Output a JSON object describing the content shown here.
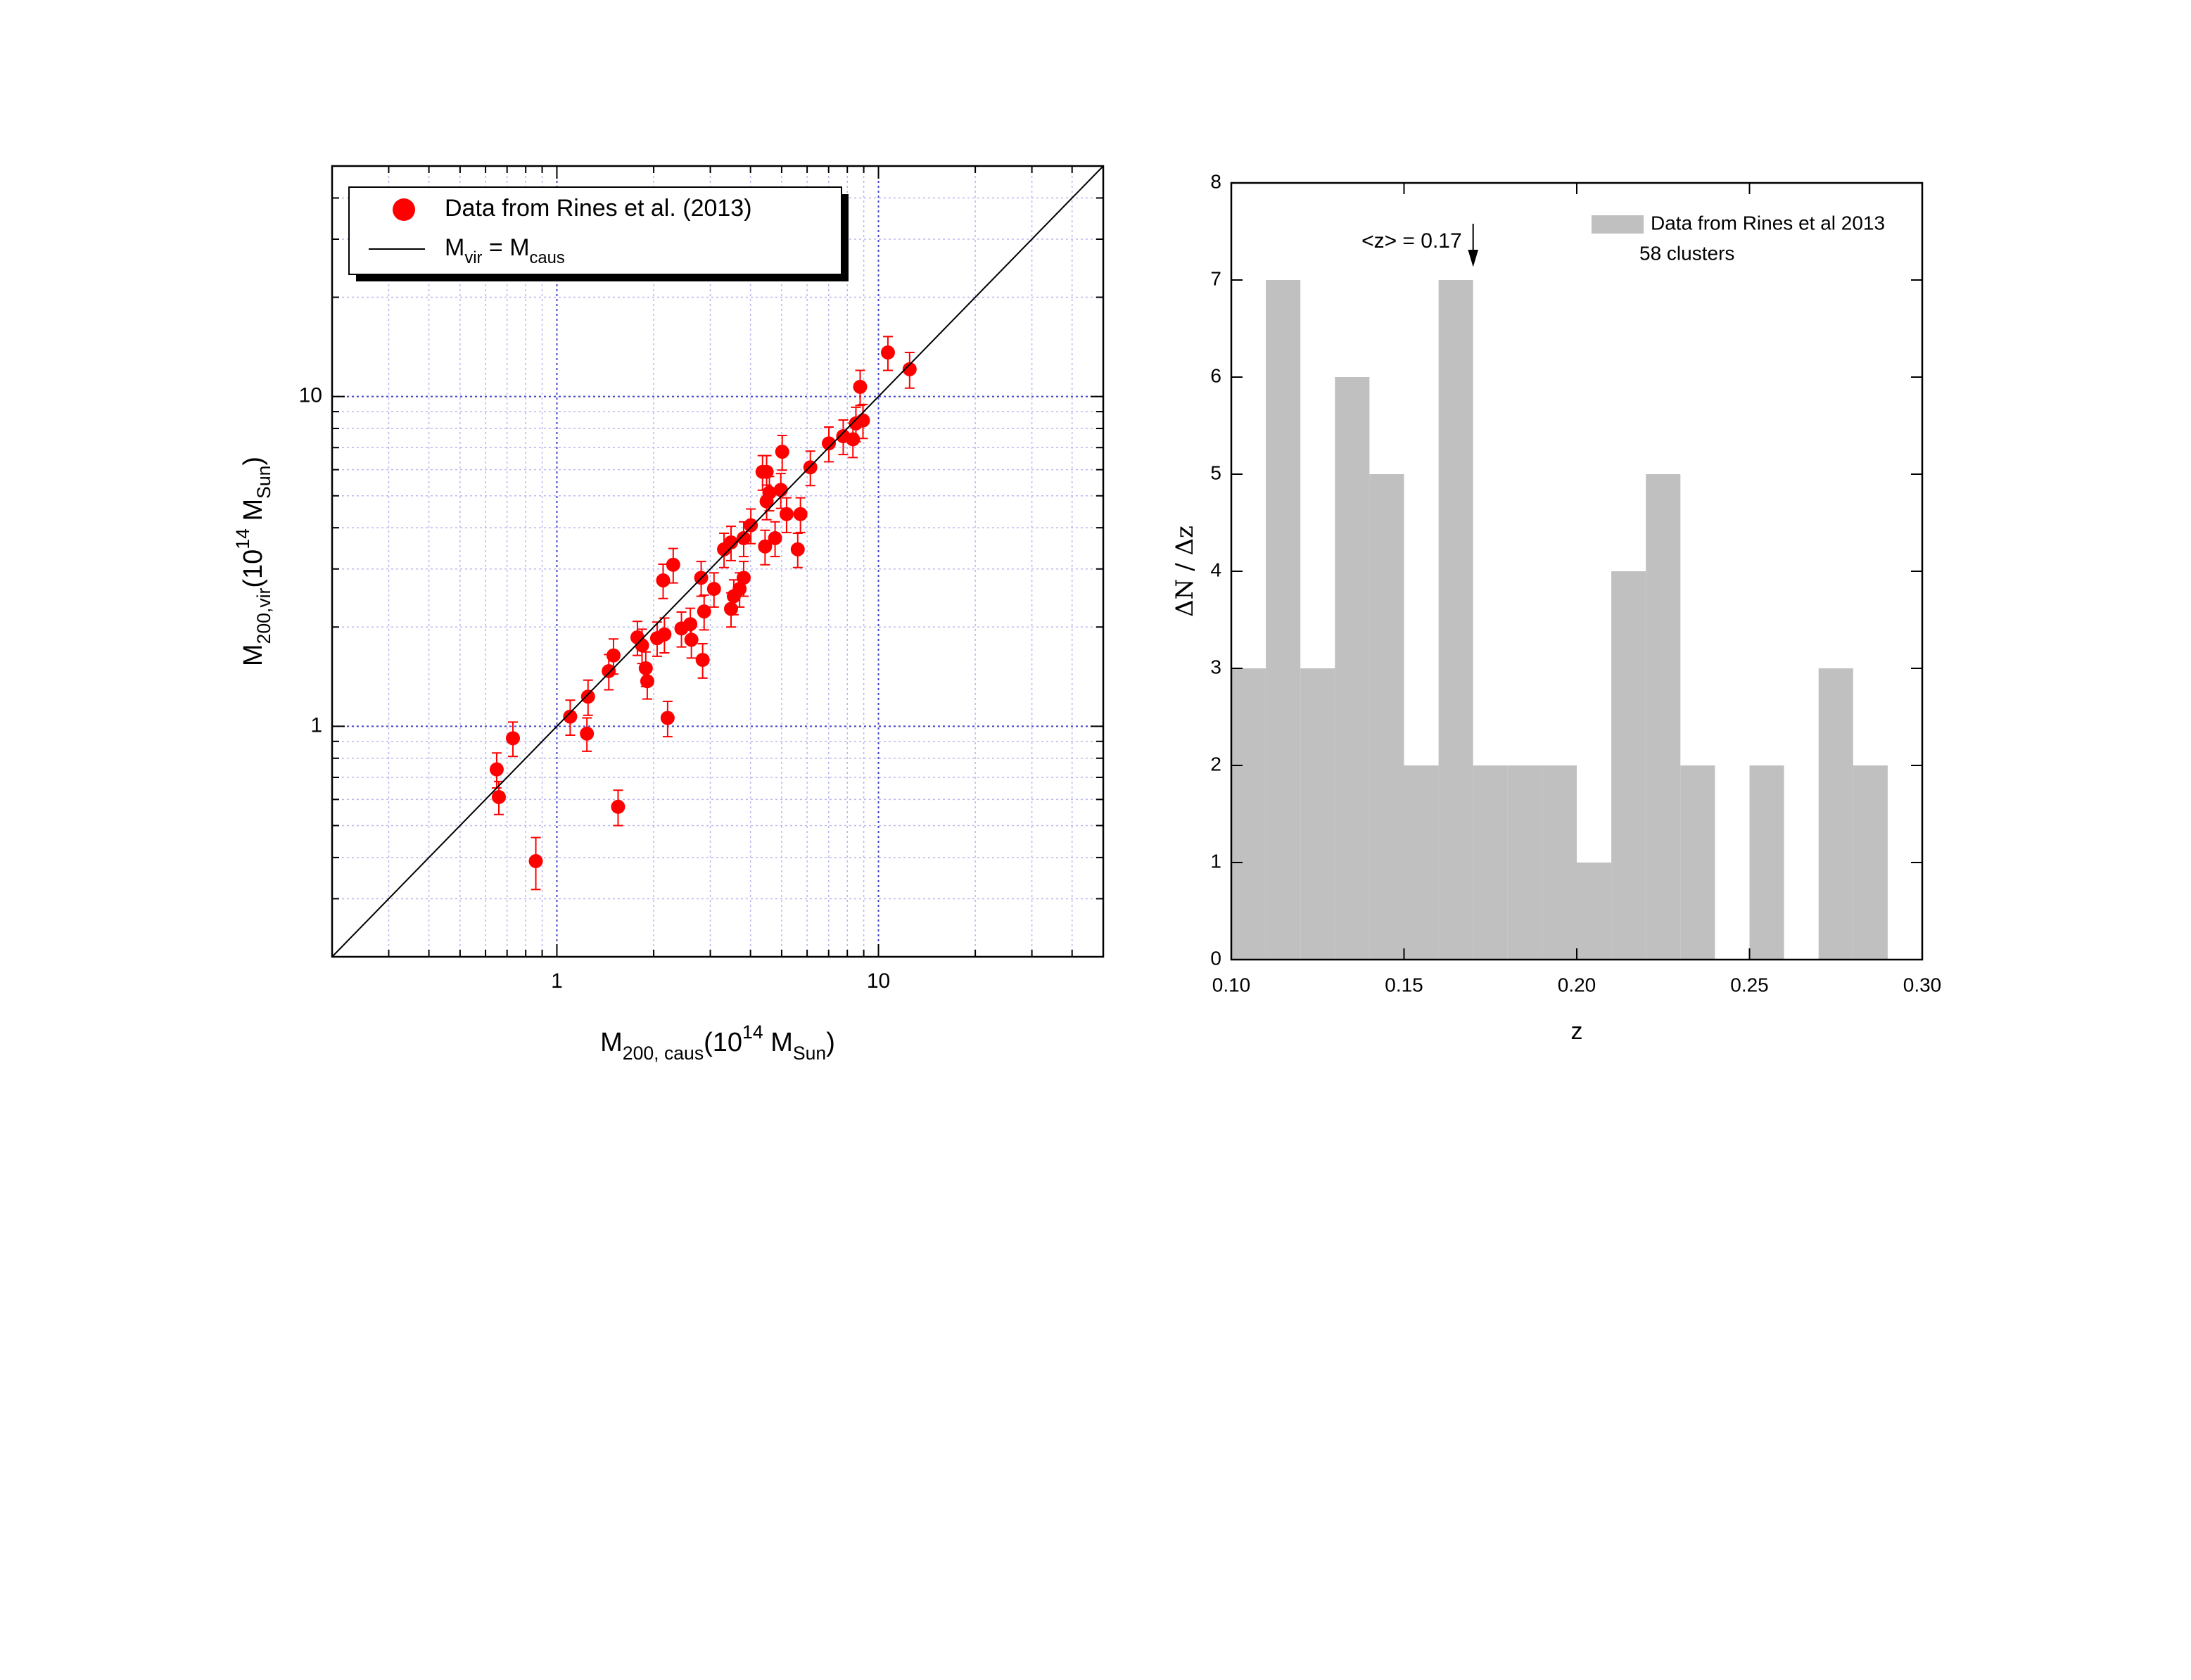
{
  "chart_data": [
    {
      "type": "scatter",
      "log_x": true,
      "log_y": true,
      "grid": true,
      "legend": "upper left",
      "xlabel": [
        {
          "text": "M"
        },
        {
          "sub": "200, caus"
        },
        {
          "text": "(10"
        },
        {
          "sup": "14"
        },
        {
          "text": " M"
        },
        {
          "sub": "Sun"
        },
        {
          "text": ")"
        }
      ],
      "ylabel": [
        {
          "text": "M"
        },
        {
          "sub": "200,vir"
        },
        {
          "text": "(10"
        },
        {
          "sup": "14"
        },
        {
          "text": " M"
        },
        {
          "sub": "Sun"
        },
        {
          "text": ")"
        }
      ],
      "xlim": [
        0.2,
        50
      ],
      "ylim": [
        0.2,
        50
      ],
      "xticks": [
        1,
        10
      ],
      "yticks": [
        1,
        10
      ],
      "series": [
        {
          "name": [
            {
              "text": "Data from Rines et al. (2013)"
            }
          ],
          "color": "#ff0000",
          "style": "points",
          "x": [
            0.65,
            0.66,
            0.73,
            0.86,
            1.1,
            1.24,
            1.25,
            1.45,
            1.5,
            1.55,
            1.78,
            1.84,
            1.89,
            1.91,
            2.05,
            2.14,
            2.16,
            2.21,
            2.3,
            2.44,
            2.6,
            2.62,
            2.81,
            2.84,
            2.87,
            3.08,
            3.31,
            3.48,
            3.48,
            3.55,
            3.7,
            3.81,
            3.81,
            4.01,
            4.36,
            4.44,
            4.49,
            4.49,
            4.58,
            4.77,
            4.97,
            5.02,
            5.18,
            5.61,
            5.72,
            6.14,
            7.01,
            7.77,
            8.33,
            8.51,
            8.77,
            8.95,
            10.7,
            12.5
          ],
          "values": [
            0.74,
            0.61,
            0.92,
            0.39,
            1.07,
            0.95,
            1.23,
            1.47,
            1.64,
            0.57,
            1.86,
            1.76,
            1.5,
            1.37,
            1.85,
            2.77,
            1.9,
            1.06,
            3.09,
            1.98,
            2.04,
            1.83,
            2.82,
            1.59,
            2.23,
            2.61,
            3.44,
            3.61,
            2.27,
            2.48,
            2.61,
            3.72,
            2.82,
            4.07,
            5.91,
            3.51,
            4.81,
            5.91,
            5.11,
            3.72,
            5.21,
            6.8,
            4.4,
            3.44,
            4.4,
            6.1,
            7.21,
            7.58,
            7.42,
            8.29,
            10.7,
            8.46,
            13.6,
            12.1
          ],
          "errors": [
            0.09,
            0.07,
            0.11,
            0.07,
            0.13,
            0.11,
            0.15,
            0.18,
            0.2,
            0.07,
            0.22,
            0.21,
            0.18,
            0.16,
            0.22,
            0.33,
            0.23,
            0.13,
            0.37,
            0.24,
            0.24,
            0.22,
            0.34,
            0.19,
            0.27,
            0.31,
            0.41,
            0.43,
            0.27,
            0.3,
            0.31,
            0.45,
            0.34,
            0.49,
            0.71,
            0.42,
            0.58,
            0.71,
            0.61,
            0.45,
            0.63,
            0.82,
            0.53,
            0.41,
            0.53,
            0.73,
            0.87,
            0.91,
            0.89,
            0.99,
            1.3,
            1.0,
            1.6,
            1.5
          ]
        },
        {
          "name": [
            {
              "text": "M"
            },
            {
              "sub": "vir"
            },
            {
              "text": " =  M"
            },
            {
              "sub": "caus"
            }
          ],
          "color": "#000000",
          "style": "line",
          "x": [
            0.2,
            50
          ],
          "values": [
            0.2,
            50
          ]
        }
      ]
    },
    {
      "type": "histogram",
      "xlabel": [
        {
          "text": "z"
        }
      ],
      "ylabel": [
        {
          "text": "ΔN / Δz"
        }
      ],
      "xlim": [
        0.1,
        0.3
      ],
      "ylim": [
        0,
        8
      ],
      "xticks": [
        {
          "value": 0.1,
          "label": "0.10"
        },
        0.15,
        {
          "value": 0.2,
          "label": "0.20"
        },
        0.25,
        {
          "value": 0.3,
          "label": "0.30"
        }
      ],
      "yticks": [
        0,
        1,
        2,
        3,
        4,
        5,
        6,
        7,
        8
      ],
      "bins": [
        0.1,
        0.11,
        0.12,
        0.13,
        0.14,
        0.15,
        0.16,
        0.17,
        0.18,
        0.19,
        0.2,
        0.21,
        0.22,
        0.23,
        0.24,
        0.25,
        0.26,
        0.27,
        0.28,
        0.29
      ],
      "series": [
        {
          "name": "Data from Rines et al 2013",
          "color": "#c0c0c0",
          "values": [
            3,
            7,
            3,
            6,
            5,
            2,
            7,
            2,
            2,
            2,
            1,
            4,
            5,
            2,
            0,
            2,
            0,
            3,
            2
          ]
        }
      ],
      "annotations": [
        {
          "text": "<z> = 0.17",
          "x": 0.17
        },
        {
          "text": "58 clusters"
        }
      ]
    }
  ]
}
